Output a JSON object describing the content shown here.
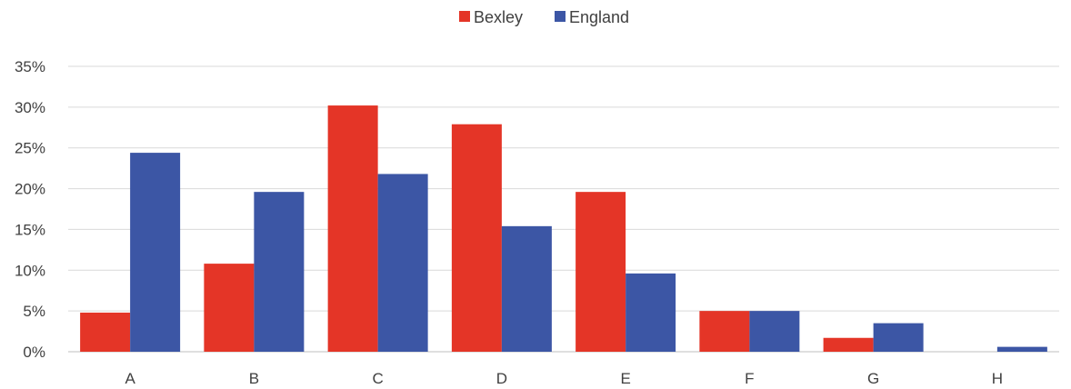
{
  "chart_data": {
    "type": "bar",
    "categories": [
      "A",
      "B",
      "C",
      "D",
      "E",
      "F",
      "G",
      "H"
    ],
    "series": [
      {
        "name": "Bexley",
        "color": "#e43527",
        "values": [
          4.8,
          10.8,
          30.2,
          27.9,
          19.6,
          5.0,
          1.7,
          0.0
        ]
      },
      {
        "name": "England",
        "color": "#3c56a5",
        "values": [
          24.4,
          19.6,
          21.8,
          15.4,
          9.6,
          5.0,
          3.5,
          0.6
        ]
      }
    ],
    "title": "",
    "xlabel": "",
    "ylabel": "",
    "ylim": [
      0,
      35
    ],
    "ytick_step": 5,
    "ytick_labels": [
      "0%",
      "5%",
      "10%",
      "15%",
      "20%",
      "25%",
      "30%",
      "35%"
    ],
    "grid": true,
    "legend_position": "top-center"
  }
}
